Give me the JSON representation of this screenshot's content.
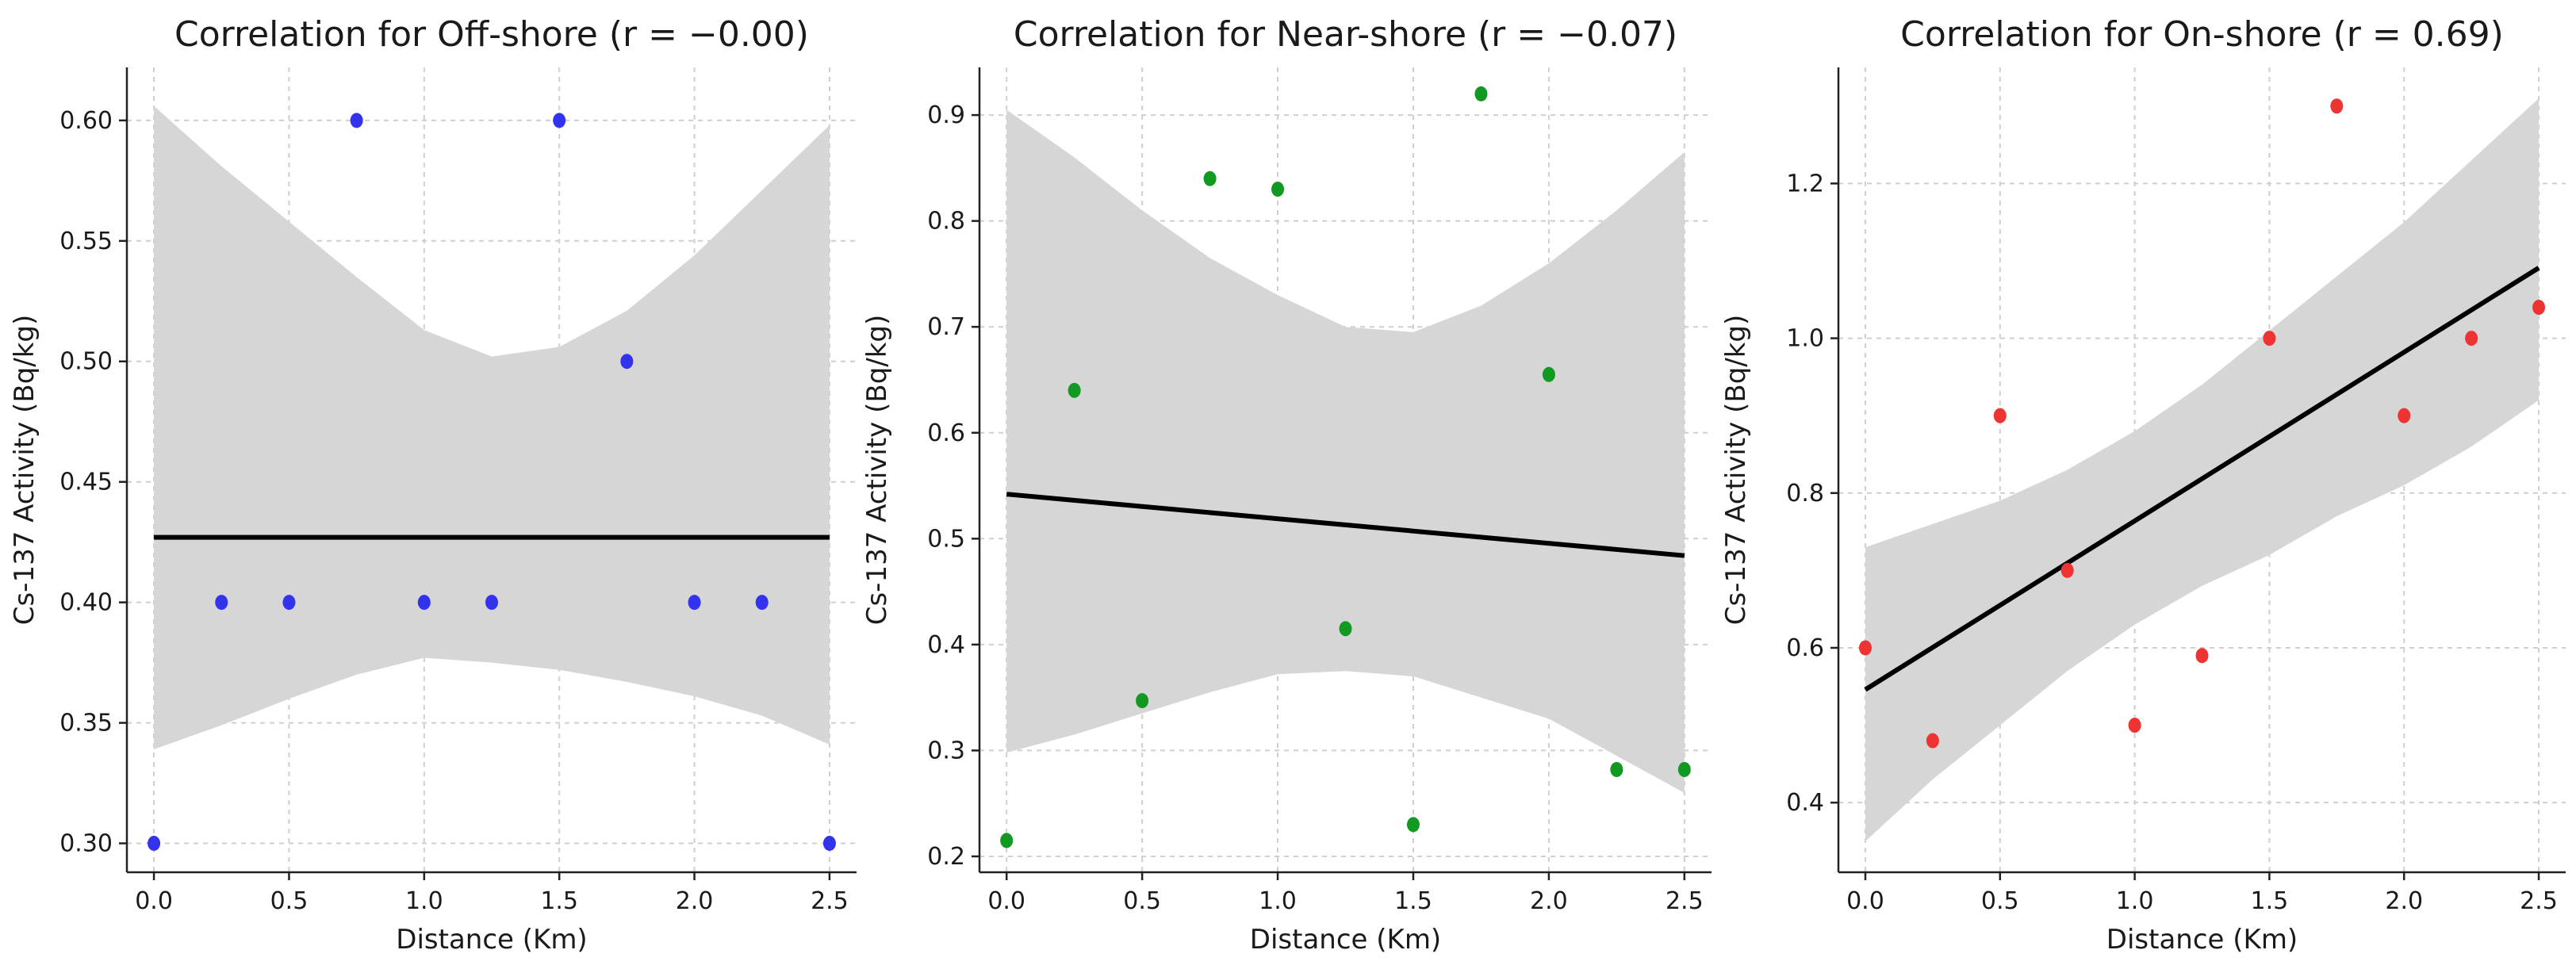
{
  "chart_data": [
    {
      "type": "scatter",
      "title": "Correlation for Off-shore (r = −0.00)",
      "xlabel": "Distance (Km)",
      "ylabel": "Cs-137 Activity (Bq/kg)",
      "xlim": [
        -0.1,
        2.6
      ],
      "ylim": [
        0.288,
        0.622
      ],
      "xticks": [
        0.0,
        0.5,
        1.0,
        1.5,
        2.0,
        2.5
      ],
      "xtick_labels": [
        "0.0",
        "0.5",
        "1.0",
        "1.5",
        "2.0",
        "2.5"
      ],
      "yticks": [
        0.3,
        0.35,
        0.4,
        0.45,
        0.5,
        0.55,
        0.6
      ],
      "ytick_labels": [
        "0.30",
        "0.35",
        "0.40",
        "0.45",
        "0.50",
        "0.55",
        "0.60"
      ],
      "point_color": "#3333ee",
      "grid": true,
      "x": [
        0.0,
        0.25,
        0.5,
        0.75,
        1.0,
        1.25,
        1.5,
        1.75,
        2.0,
        2.25,
        2.5
      ],
      "y": [
        0.3,
        0.4,
        0.4,
        0.6,
        0.4,
        0.4,
        0.6,
        0.5,
        0.4,
        0.4,
        0.3
      ],
      "fit_line": {
        "x": [
          0.0,
          2.5
        ],
        "y": [
          0.427,
          0.427
        ]
      },
      "confidence_band": {
        "x": [
          0.0,
          0.25,
          0.5,
          0.75,
          1.0,
          1.25,
          1.5,
          1.75,
          2.0,
          2.25,
          2.5
        ],
        "upper": [
          0.606,
          0.581,
          0.558,
          0.535,
          0.513,
          0.502,
          0.506,
          0.521,
          0.544,
          0.571,
          0.598
        ],
        "lower": [
          0.339,
          0.349,
          0.36,
          0.37,
          0.377,
          0.375,
          0.372,
          0.367,
          0.361,
          0.353,
          0.341
        ]
      }
    },
    {
      "type": "scatter",
      "title": "Correlation for Near-shore (r = −0.07)",
      "xlabel": "Distance (Km)",
      "ylabel": "Cs-137 Activity (Bq/kg)",
      "xlim": [
        -0.1,
        2.6
      ],
      "ylim": [
        0.185,
        0.945
      ],
      "xticks": [
        0.0,
        0.5,
        1.0,
        1.5,
        2.0,
        2.5
      ],
      "xtick_labels": [
        "0.0",
        "0.5",
        "1.0",
        "1.5",
        "2.0",
        "2.5"
      ],
      "yticks": [
        0.2,
        0.3,
        0.4,
        0.5,
        0.6,
        0.7,
        0.8,
        0.9
      ],
      "ytick_labels": [
        "0.2",
        "0.3",
        "0.4",
        "0.5",
        "0.6",
        "0.7",
        "0.8",
        "0.9"
      ],
      "point_color": "#119922",
      "grid": true,
      "x": [
        0.0,
        0.25,
        0.5,
        0.75,
        1.0,
        1.25,
        1.5,
        1.75,
        2.0,
        2.25,
        2.5
      ],
      "y": [
        0.215,
        0.64,
        0.347,
        0.84,
        0.83,
        0.415,
        0.23,
        0.92,
        0.655,
        0.282,
        0.282
      ],
      "fit_line": {
        "x": [
          0.0,
          2.5
        ],
        "y": [
          0.542,
          0.484
        ]
      },
      "confidence_band": {
        "x": [
          0.0,
          0.25,
          0.5,
          0.75,
          1.0,
          1.25,
          1.5,
          1.75,
          2.0,
          2.25,
          2.5
        ],
        "upper": [
          0.905,
          0.86,
          0.81,
          0.765,
          0.73,
          0.7,
          0.695,
          0.72,
          0.76,
          0.81,
          0.865
        ],
        "lower": [
          0.298,
          0.315,
          0.335,
          0.355,
          0.372,
          0.375,
          0.37,
          0.35,
          0.33,
          0.295,
          0.26
        ]
      }
    },
    {
      "type": "scatter",
      "title": "Correlation for On-shore (r = 0.69)",
      "xlabel": "Distance (Km)",
      "ylabel": "Cs-137 Activity (Bq/kg)",
      "xlim": [
        -0.1,
        2.6
      ],
      "ylim": [
        0.31,
        1.35
      ],
      "xticks": [
        0.0,
        0.5,
        1.0,
        1.5,
        2.0,
        2.5
      ],
      "xtick_labels": [
        "0.0",
        "0.5",
        "1.0",
        "1.5",
        "2.0",
        "2.5"
      ],
      "yticks": [
        0.4,
        0.6,
        0.8,
        1.0,
        1.2
      ],
      "ytick_labels": [
        "0.4",
        "0.6",
        "0.8",
        "1.0",
        "1.2"
      ],
      "point_color": "#ee3333",
      "grid": true,
      "x": [
        0.0,
        0.25,
        0.5,
        0.75,
        1.0,
        1.25,
        1.5,
        1.75,
        2.0,
        2.25,
        2.5
      ],
      "y": [
        0.6,
        0.48,
        0.9,
        0.7,
        0.5,
        0.59,
        1.0,
        1.3,
        0.9,
        1.0,
        1.04
      ],
      "fit_line": {
        "x": [
          0.0,
          2.5
        ],
        "y": [
          0.546,
          1.091
        ]
      },
      "confidence_band": {
        "x": [
          0.0,
          0.25,
          0.5,
          0.75,
          1.0,
          1.25,
          1.5,
          1.75,
          2.0,
          2.25,
          2.5
        ],
        "upper": [
          0.73,
          0.76,
          0.79,
          0.83,
          0.88,
          0.94,
          1.01,
          1.08,
          1.15,
          1.23,
          1.31
        ],
        "lower": [
          0.35,
          0.43,
          0.5,
          0.57,
          0.63,
          0.68,
          0.72,
          0.77,
          0.81,
          0.86,
          0.92
        ]
      }
    }
  ]
}
